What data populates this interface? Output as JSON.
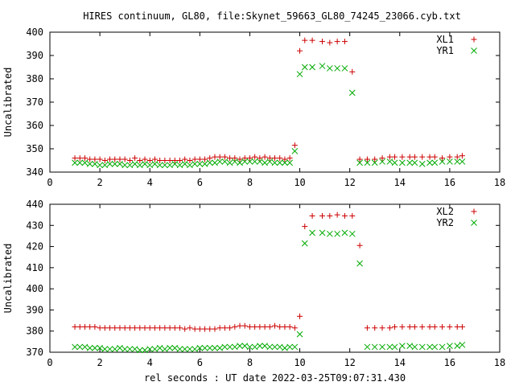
{
  "title": "HIRES continuum, GL80, file:Skynet_59663_GL80_74245_23066.cyb.txt",
  "chart_data": [
    {
      "type": "scatter",
      "xlim": [
        0,
        18
      ],
      "ylim": [
        340,
        400
      ],
      "x_ticks": [
        0,
        2,
        4,
        6,
        8,
        10,
        12,
        14,
        16,
        18
      ],
      "y_ticks": [
        340,
        350,
        360,
        370,
        380,
        390,
        400
      ],
      "ylabel": "Uncalibrated",
      "xlabel": "",
      "grid": false,
      "legend_position": "top-right",
      "series": [
        {
          "name": "XL1",
          "marker": "plus",
          "color": "#cc0000",
          "x": [
            1.0,
            1.2,
            1.4,
            1.6,
            1.8,
            2.0,
            2.2,
            2.4,
            2.6,
            2.8,
            3.0,
            3.2,
            3.4,
            3.6,
            3.8,
            4.0,
            4.2,
            4.4,
            4.6,
            4.8,
            5.0,
            5.2,
            5.4,
            5.6,
            5.8,
            6.0,
            6.2,
            6.4,
            6.6,
            6.8,
            7.0,
            7.2,
            7.4,
            7.6,
            7.8,
            8.0,
            8.2,
            8.4,
            8.6,
            8.8,
            9.0,
            9.2,
            9.4,
            9.6,
            9.8,
            10.0,
            10.2,
            10.5,
            10.9,
            11.2,
            11.5,
            11.8,
            12.1,
            12.4,
            12.7,
            13.0,
            13.3,
            13.6,
            13.8,
            14.1,
            14.4,
            14.6,
            14.9,
            15.2,
            15.4,
            15.7,
            16.0,
            16.3,
            16.5
          ],
          "y": [
            346,
            346,
            346,
            345.5,
            345.5,
            345.5,
            345,
            345.5,
            345.5,
            345.5,
            345.5,
            345,
            346,
            345,
            345.5,
            345,
            345.5,
            345,
            345,
            345,
            345,
            345,
            345.5,
            345,
            345.5,
            345.5,
            345.5,
            346,
            346.5,
            346.5,
            346.5,
            346,
            346,
            345.5,
            346,
            346,
            346.5,
            346,
            346.5,
            346,
            346,
            346,
            345.5,
            346,
            351.5,
            392,
            396.5,
            396.5,
            396,
            395.5,
            396,
            396,
            383,
            345.5,
            345.5,
            345.5,
            346,
            346.5,
            346.5,
            346.5,
            346.5,
            346.5,
            346.5,
            346.5,
            346.5,
            346,
            346.5,
            346.5,
            347
          ]
        },
        {
          "name": "YR1",
          "marker": "cross",
          "color": "#00aa00",
          "x": [
            1.0,
            1.2,
            1.4,
            1.6,
            1.8,
            2.0,
            2.2,
            2.4,
            2.6,
            2.8,
            3.0,
            3.2,
            3.4,
            3.6,
            3.8,
            4.0,
            4.2,
            4.4,
            4.6,
            4.8,
            5.0,
            5.2,
            5.4,
            5.6,
            5.8,
            6.0,
            6.2,
            6.4,
            6.6,
            6.8,
            7.0,
            7.2,
            7.4,
            7.6,
            7.8,
            8.0,
            8.2,
            8.4,
            8.6,
            8.8,
            9.0,
            9.2,
            9.4,
            9.6,
            9.8,
            10.0,
            10.2,
            10.5,
            10.9,
            11.2,
            11.5,
            11.8,
            12.1,
            12.4,
            12.7,
            13.0,
            13.3,
            13.6,
            13.8,
            14.1,
            14.4,
            14.6,
            14.9,
            15.2,
            15.4,
            15.7,
            16.0,
            16.3,
            16.5
          ],
          "y": [
            344,
            344,
            344,
            343.5,
            343.5,
            343,
            343,
            343.5,
            343.5,
            343.5,
            343,
            343,
            343.5,
            343,
            343.5,
            343,
            343.5,
            343,
            343,
            343,
            343.5,
            343,
            343.5,
            343,
            343.5,
            343.5,
            343.5,
            344,
            344,
            344.5,
            344.5,
            344,
            344.5,
            344,
            344.5,
            344.5,
            344.5,
            344.5,
            344,
            344.5,
            344,
            344,
            344,
            344,
            349,
            382,
            385,
            385,
            385.5,
            384.5,
            384.5,
            384.5,
            374,
            344,
            344,
            344,
            344.5,
            344.5,
            344,
            344,
            344,
            344,
            343.5,
            344,
            344,
            344.5,
            344.5,
            344.5,
            344.5
          ]
        }
      ]
    },
    {
      "type": "scatter",
      "xlim": [
        0,
        18
      ],
      "ylim": [
        370,
        440
      ],
      "x_ticks": [
        0,
        2,
        4,
        6,
        8,
        10,
        12,
        14,
        16,
        18
      ],
      "y_ticks": [
        370,
        380,
        390,
        400,
        410,
        420,
        430,
        440
      ],
      "ylabel": "Uncalibrated",
      "xlabel": "rel seconds : UT date 2022-03-25T09:07:31.430",
      "grid": false,
      "legend_position": "top-right",
      "series": [
        {
          "name": "XL2",
          "marker": "plus",
          "color": "#cc0000",
          "x": [
            1.0,
            1.2,
            1.4,
            1.6,
            1.8,
            2.0,
            2.2,
            2.4,
            2.6,
            2.8,
            3.0,
            3.2,
            3.4,
            3.6,
            3.8,
            4.0,
            4.2,
            4.4,
            4.6,
            4.8,
            5.0,
            5.2,
            5.4,
            5.6,
            5.8,
            6.0,
            6.2,
            6.4,
            6.6,
            6.8,
            7.0,
            7.2,
            7.4,
            7.6,
            7.8,
            8.0,
            8.2,
            8.4,
            8.6,
            8.8,
            9.0,
            9.2,
            9.4,
            9.6,
            9.8,
            10.0,
            10.2,
            10.5,
            10.9,
            11.2,
            11.5,
            11.8,
            12.1,
            12.4,
            12.7,
            13.0,
            13.3,
            13.6,
            13.8,
            14.1,
            14.4,
            14.6,
            14.9,
            15.2,
            15.4,
            15.7,
            16.0,
            16.3,
            16.5
          ],
          "y": [
            382,
            382,
            382,
            382,
            382,
            381.5,
            381.5,
            381.5,
            381.5,
            381.5,
            381.5,
            381.5,
            381.5,
            381.5,
            381.5,
            381.5,
            381.5,
            381.5,
            381.5,
            381.5,
            381.5,
            381.5,
            381,
            381.5,
            381,
            381,
            381,
            381,
            381,
            381.5,
            381.5,
            381.5,
            382,
            382.5,
            382.5,
            382,
            382,
            382,
            382,
            382,
            382.5,
            382,
            382,
            382,
            381.5,
            387,
            429.5,
            434.5,
            434.5,
            434.5,
            435,
            434.5,
            434.5,
            420.5,
            381.5,
            381.5,
            381.5,
            381.5,
            382,
            382,
            382,
            382,
            382,
            382,
            382,
            382,
            382,
            382,
            382
          ]
        },
        {
          "name": "YR2",
          "marker": "cross",
          "color": "#00aa00",
          "x": [
            1.0,
            1.2,
            1.4,
            1.6,
            1.8,
            2.0,
            2.2,
            2.4,
            2.6,
            2.8,
            3.0,
            3.2,
            3.4,
            3.6,
            3.8,
            4.0,
            4.2,
            4.4,
            4.6,
            4.8,
            5.0,
            5.2,
            5.4,
            5.6,
            5.8,
            6.0,
            6.2,
            6.4,
            6.6,
            6.8,
            7.0,
            7.2,
            7.4,
            7.6,
            7.8,
            8.0,
            8.2,
            8.4,
            8.6,
            8.8,
            9.0,
            9.2,
            9.4,
            9.6,
            9.8,
            10.0,
            10.2,
            10.5,
            10.9,
            11.2,
            11.5,
            11.8,
            12.1,
            12.4,
            12.7,
            13.0,
            13.3,
            13.6,
            13.8,
            14.1,
            14.4,
            14.6,
            14.9,
            15.2,
            15.4,
            15.7,
            16.0,
            16.3,
            16.5
          ],
          "y": [
            372.5,
            372.5,
            372.5,
            372,
            372,
            372,
            371.5,
            371.5,
            371.5,
            372,
            371.5,
            371.5,
            371.5,
            371,
            371,
            371.5,
            371.5,
            372,
            371.5,
            372,
            372,
            371.5,
            371.5,
            371.5,
            371.5,
            372,
            372,
            372,
            372,
            372,
            372.5,
            372.5,
            372.5,
            373,
            373,
            372.5,
            372.5,
            373,
            373,
            372.5,
            372.5,
            372.5,
            372,
            372.5,
            372.5,
            378.5,
            421.5,
            426.5,
            426.5,
            426,
            426,
            426.5,
            426,
            412,
            372.5,
            372.5,
            372.5,
            372.5,
            372.5,
            373,
            373,
            372.5,
            372.5,
            372.5,
            372.5,
            372.5,
            373,
            373,
            373.5
          ]
        }
      ]
    }
  ]
}
